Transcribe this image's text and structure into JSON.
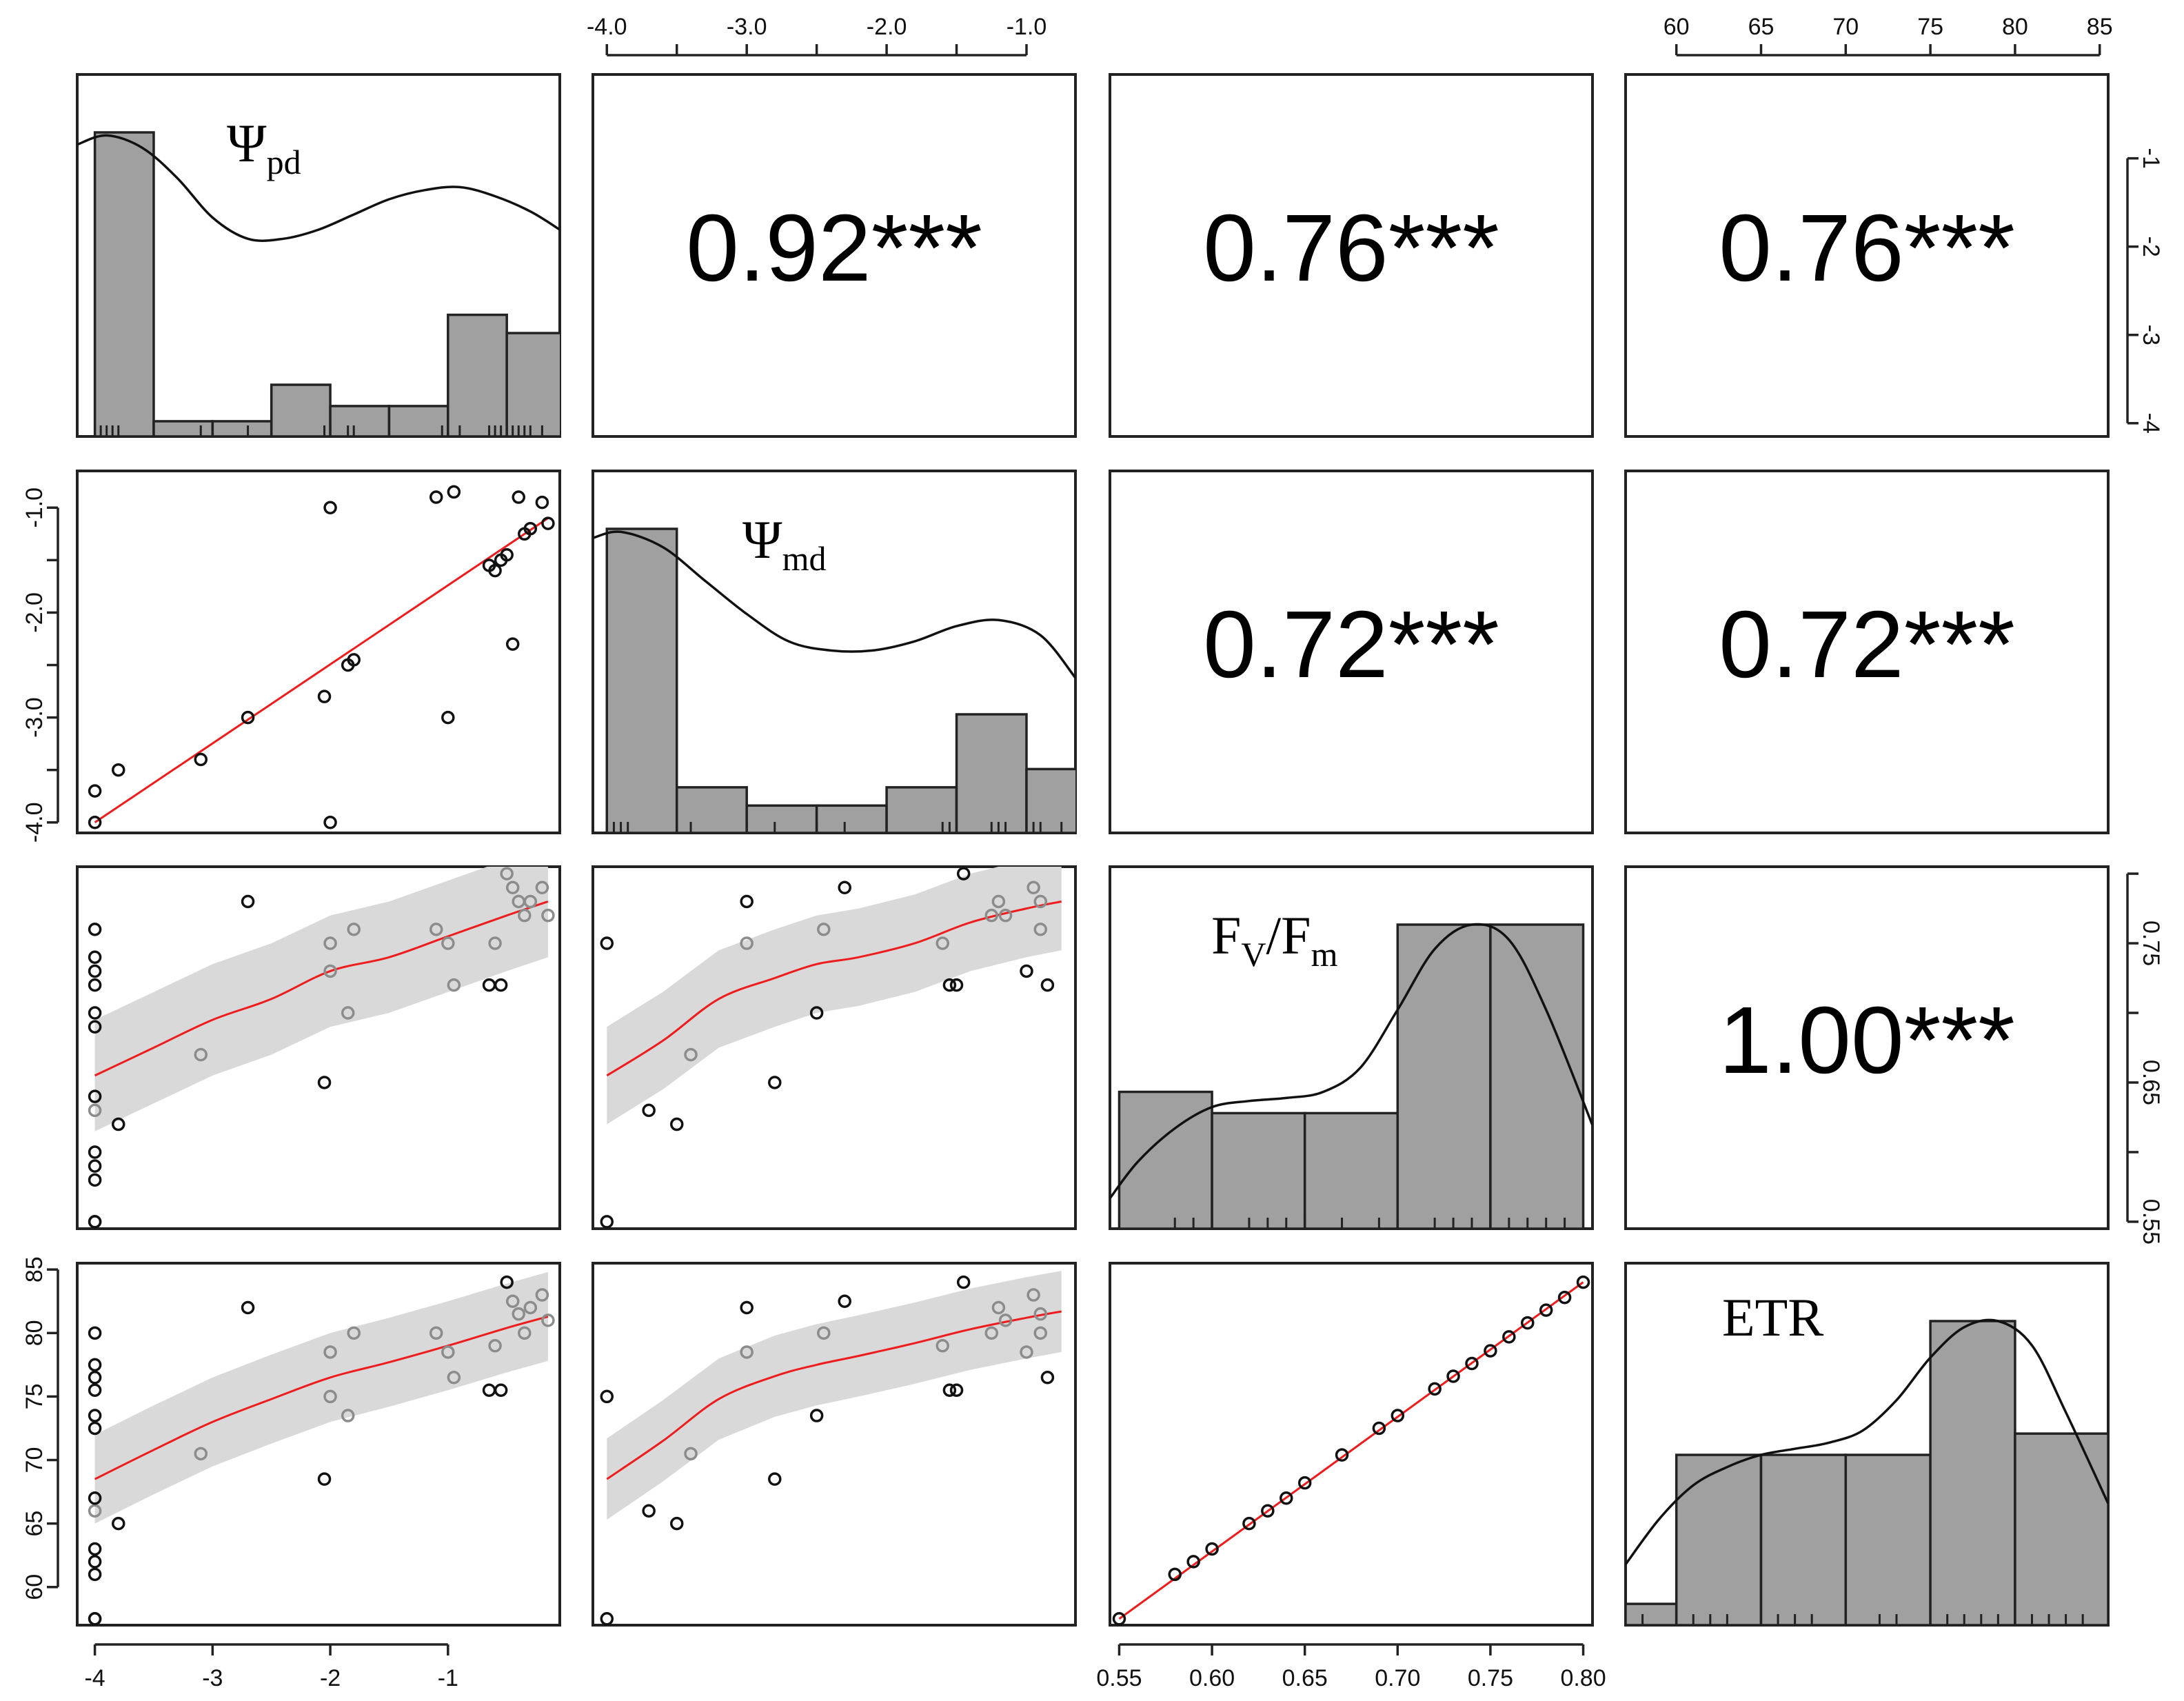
{
  "chart_data": {
    "type": "scatter",
    "title": "",
    "variables": [
      {
        "key": "psi_pd",
        "label_main": "Ψ",
        "label_sub": "pd",
        "range": [
          -4.15,
          -0.05
        ]
      },
      {
        "key": "psi_md",
        "label_main": "Ψ",
        "label_sub": "md",
        "range": [
          -4.1,
          -0.65
        ]
      },
      {
        "key": "fv_fm",
        "label_main": "F",
        "label_sub": "V",
        "label_mid": "/F",
        "label_sub2": "m",
        "range": [
          0.545,
          0.805
        ]
      },
      {
        "key": "etr",
        "label_main": "ETR",
        "label_sub": "",
        "range": [
          57,
          85.5
        ]
      }
    ],
    "correlations": [
      {
        "row": 0,
        "col": 1,
        "value": 0.92,
        "text": "0.92***"
      },
      {
        "row": 0,
        "col": 2,
        "value": 0.76,
        "text": "0.76***"
      },
      {
        "row": 0,
        "col": 3,
        "value": 0.76,
        "text": "0.76***"
      },
      {
        "row": 1,
        "col": 2,
        "value": 0.72,
        "text": "0.72***"
      },
      {
        "row": 1,
        "col": 3,
        "value": 0.72,
        "text": "0.72***"
      },
      {
        "row": 2,
        "col": 3,
        "value": 1.0,
        "text": "1.00***"
      }
    ],
    "axes": {
      "top": [
        {
          "col": 1,
          "ticks": [
            {
              "v": -4.0,
              "label": "-4.0"
            },
            {
              "v": -3.5,
              "label": ""
            },
            {
              "v": -3.0,
              "label": "-3.0"
            },
            {
              "v": -2.5,
              "label": ""
            },
            {
              "v": -2.0,
              "label": "-2.0"
            },
            {
              "v": -1.5,
              "label": ""
            },
            {
              "v": -1.0,
              "label": "-1.0"
            }
          ]
        },
        {
          "col": 3,
          "ticks": [
            {
              "v": 60,
              "label": "60"
            },
            {
              "v": 65,
              "label": "65"
            },
            {
              "v": 70,
              "label": "70"
            },
            {
              "v": 75,
              "label": "75"
            },
            {
              "v": 80,
              "label": "80"
            },
            {
              "v": 85,
              "label": "85"
            }
          ]
        }
      ],
      "bottom": [
        {
          "col": 0,
          "ticks": [
            {
              "v": -4,
              "label": "-4"
            },
            {
              "v": -3,
              "label": "-3"
            },
            {
              "v": -2,
              "label": "-2"
            },
            {
              "v": -1,
              "label": "-1"
            }
          ]
        },
        {
          "col": 2,
          "ticks": [
            {
              "v": 0.55,
              "label": "0.55"
            },
            {
              "v": 0.6,
              "label": "0.60"
            },
            {
              "v": 0.65,
              "label": "0.65"
            },
            {
              "v": 0.7,
              "label": "0.70"
            },
            {
              "v": 0.75,
              "label": "0.75"
            },
            {
              "v": 0.8,
              "label": "0.80"
            }
          ]
        }
      ],
      "left": [
        {
          "row": 1,
          "ticks": [
            {
              "v": -4.0,
              "label": "-4.0"
            },
            {
              "v": -3.5,
              "label": ""
            },
            {
              "v": -3.0,
              "label": "-3.0"
            },
            {
              "v": -2.5,
              "label": ""
            },
            {
              "v": -2.0,
              "label": "-2.0"
            },
            {
              "v": -1.5,
              "label": ""
            },
            {
              "v": -1.0,
              "label": "-1.0"
            }
          ]
        },
        {
          "row": 3,
          "ticks": [
            {
              "v": 60,
              "label": "60"
            },
            {
              "v": 65,
              "label": "65"
            },
            {
              "v": 70,
              "label": "70"
            },
            {
              "v": 75,
              "label": "75"
            },
            {
              "v": 80,
              "label": "80"
            },
            {
              "v": 85,
              "label": "85"
            }
          ]
        }
      ],
      "right": [
        {
          "row": 0,
          "ticks": [
            {
              "v": -4,
              "label": "-4"
            },
            {
              "v": -3,
              "label": "-3"
            },
            {
              "v": -2,
              "label": "-2"
            },
            {
              "v": -1,
              "label": "-1"
            }
          ]
        },
        {
          "row": 2,
          "ticks": [
            {
              "v": 0.55,
              "label": "0.55"
            },
            {
              "v": 0.6,
              "label": ""
            },
            {
              "v": 0.65,
              "label": "0.65"
            },
            {
              "v": 0.7,
              "label": ""
            },
            {
              "v": 0.75,
              "label": "0.75"
            },
            {
              "v": 0.8,
              "label": ""
            }
          ]
        }
      ]
    },
    "histograms": [
      {
        "var": 0,
        "bins": [
          [
            -4.0,
            -3.5,
            1.0
          ],
          [
            -3.5,
            -3.0,
            0.05
          ],
          [
            -3.0,
            -2.5,
            0.05
          ],
          [
            -2.5,
            -2.0,
            0.17
          ],
          [
            -2.0,
            -1.5,
            0.1
          ],
          [
            -1.5,
            -1.0,
            0.1
          ],
          [
            -1.0,
            -0.5,
            0.4
          ],
          [
            -0.5,
            0.0,
            0.34
          ]
        ],
        "density_x": [
          -4.15,
          -3.9,
          -3.6,
          -3.3,
          -3.0,
          -2.7,
          -2.4,
          -2.1,
          -1.8,
          -1.5,
          -1.2,
          -0.9,
          -0.6,
          -0.3,
          -0.05
        ],
        "density_y": [
          0.96,
          0.99,
          0.95,
          0.85,
          0.72,
          0.65,
          0.65,
          0.68,
          0.73,
          0.78,
          0.81,
          0.82,
          0.79,
          0.74,
          0.68
        ],
        "rug": [
          -4.0,
          -3.95,
          -3.9,
          -3.85,
          -3.8,
          -3.1,
          -2.7,
          -2.05,
          -2.0,
          -1.85,
          -1.8,
          -1.05,
          -0.9,
          -0.65,
          -0.6,
          -0.55,
          -0.5,
          -0.45,
          -0.4,
          -0.35,
          -0.3,
          -0.2
        ]
      },
      {
        "var": 1,
        "bins": [
          [
            -4.0,
            -3.5,
            1.0
          ],
          [
            -3.5,
            -3.0,
            0.15
          ],
          [
            -3.0,
            -2.5,
            0.09
          ],
          [
            -2.5,
            -2.0,
            0.09
          ],
          [
            -2.0,
            -1.5,
            0.15
          ],
          [
            -1.5,
            -1.0,
            0.39
          ],
          [
            -1.0,
            -0.5,
            0.21
          ]
        ],
        "density_x": [
          -4.1,
          -3.9,
          -3.6,
          -3.3,
          -3.0,
          -2.7,
          -2.4,
          -2.1,
          -1.8,
          -1.5,
          -1.2,
          -0.9,
          -0.65
        ],
        "density_y": [
          0.97,
          0.99,
          0.94,
          0.83,
          0.72,
          0.63,
          0.6,
          0.6,
          0.63,
          0.68,
          0.7,
          0.65,
          0.51
        ],
        "rug": [
          -4.0,
          -3.95,
          -3.9,
          -3.85,
          -3.5,
          -3.4,
          -3.0,
          -2.8,
          -2.5,
          -2.3,
          -1.6,
          -1.55,
          -1.5,
          -1.25,
          -1.2,
          -1.15,
          -1.0,
          -0.95,
          -0.9,
          -0.75
        ]
      },
      {
        "var": 2,
        "bins": [
          [
            0.55,
            0.6,
            0.45
          ],
          [
            0.6,
            0.65,
            0.38
          ],
          [
            0.65,
            0.7,
            0.38
          ],
          [
            0.7,
            0.75,
            1.0
          ],
          [
            0.75,
            0.8,
            1.0
          ]
        ],
        "density_x": [
          0.545,
          0.56,
          0.58,
          0.6,
          0.62,
          0.64,
          0.66,
          0.68,
          0.7,
          0.72,
          0.74,
          0.76,
          0.78,
          0.805
        ],
        "density_y": [
          0.1,
          0.22,
          0.33,
          0.4,
          0.42,
          0.43,
          0.45,
          0.53,
          0.72,
          0.92,
          1.0,
          0.95,
          0.72,
          0.34
        ],
        "rug": [
          0.55,
          0.58,
          0.59,
          0.6,
          0.62,
          0.63,
          0.64,
          0.65,
          0.67,
          0.69,
          0.7,
          0.72,
          0.73,
          0.74,
          0.75,
          0.76,
          0.77,
          0.78,
          0.79,
          0.8
        ]
      },
      {
        "var": 3,
        "bins": [
          [
            57,
            60,
            0.07
          ],
          [
            60,
            65,
            0.56
          ],
          [
            65,
            70,
            0.56
          ],
          [
            70,
            75,
            0.56
          ],
          [
            75,
            80,
            1.0
          ],
          [
            80,
            85.5,
            0.63
          ]
        ],
        "density_x": [
          57,
          59,
          61,
          63,
          65,
          67,
          69,
          71,
          73,
          75,
          77,
          79,
          81,
          83,
          85.5
        ],
        "density_y": [
          0.2,
          0.35,
          0.46,
          0.52,
          0.56,
          0.58,
          0.6,
          0.64,
          0.74,
          0.88,
          0.98,
          1.0,
          0.92,
          0.7,
          0.4
        ],
        "rug": [
          58,
          61,
          62,
          63,
          65,
          66,
          67,
          68,
          70,
          72,
          73,
          76,
          77,
          78,
          79,
          80,
          81,
          82,
          83,
          84
        ]
      }
    ],
    "observations": {
      "psi_pd": [
        -4.0,
        -4.0,
        -3.8,
        -3.1,
        -2.7,
        -2.05,
        -2.0,
        -1.85,
        -1.8,
        -1.1,
        -1.0,
        -0.65,
        -0.6,
        -0.55,
        -0.5,
        -0.45,
        -0.4,
        -0.35,
        -0.3,
        -0.2,
        -0.15,
        -0.95,
        -2.0
      ],
      "psi_md": [
        -3.7,
        -4.0,
        -3.5,
        -3.4,
        -3.0,
        -2.8,
        -1.0,
        -2.5,
        -2.45,
        -0.9,
        -3.0,
        -1.55,
        -1.6,
        -1.5,
        -1.45,
        -2.3,
        -0.9,
        -1.25,
        -1.2,
        -0.95,
        -1.15,
        -0.85,
        -4.0
      ],
      "fv_fm": [
        0.63,
        0.55,
        0.62,
        0.67,
        0.78,
        0.65,
        0.73,
        0.7,
        0.76,
        0.76,
        0.75,
        0.72,
        0.75,
        0.72,
        0.8,
        0.79,
        0.78,
        0.77,
        0.78,
        0.79,
        0.77,
        0.72,
        0.75
      ],
      "etr": [
        66.0,
        57.5,
        65.0,
        70.5,
        82.0,
        68.5,
        78.5,
        73.5,
        80.0,
        80.0,
        78.5,
        75.5,
        79.0,
        75.5,
        84.0,
        82.5,
        81.5,
        80.0,
        82.0,
        83.0,
        81.0,
        76.5,
        75.0
      ]
    },
    "extra_points": [
      {
        "panel": "2-0",
        "x": [
          -4.0,
          -4.0,
          -4.0,
          -4.0,
          -4.0,
          -4.0,
          -4.0,
          -4.0,
          -4.0,
          -4.0,
          -4.0
        ],
        "y": [
          0.76,
          0.74,
          0.73,
          0.72,
          0.7,
          0.69,
          0.64,
          0.6,
          0.59,
          0.58,
          0.55
        ]
      },
      {
        "panel": "3-0",
        "x": [
          -4.0,
          -4.0,
          -4.0,
          -4.0,
          -4.0,
          -4.0,
          -4.0,
          -4.0,
          -4.0,
          -4.0,
          -4.0
        ],
        "y": [
          80,
          77.5,
          76.5,
          75.5,
          73.5,
          72.5,
          67,
          63,
          62,
          61,
          57.5
        ]
      }
    ],
    "loess": {
      "fv_vs_pd": {
        "x": [
          -4.0,
          -3.5,
          -3.0,
          -2.5,
          -2.0,
          -1.5,
          -1.0,
          -0.5,
          -0.15
        ],
        "y": [
          0.655,
          0.675,
          0.695,
          0.71,
          0.73,
          0.74,
          0.755,
          0.77,
          0.78
        ],
        "band": 0.04
      },
      "fv_vs_md": {
        "x": [
          -4.0,
          -3.6,
          -3.2,
          -2.8,
          -2.5,
          -2.2,
          -1.8,
          -1.4,
          -1.0,
          -0.75
        ],
        "y": [
          0.655,
          0.68,
          0.71,
          0.725,
          0.735,
          0.74,
          0.75,
          0.765,
          0.775,
          0.78
        ],
        "band": 0.035
      },
      "etr_vs_pd": {
        "x": [
          -4.0,
          -3.5,
          -3.0,
          -2.5,
          -2.0,
          -1.5,
          -1.0,
          -0.5,
          -0.15
        ],
        "y": [
          68.5,
          70.8,
          73.0,
          74.8,
          76.5,
          77.7,
          79.0,
          80.4,
          81.3
        ],
        "band": 3.5
      },
      "etr_vs_md": {
        "x": [
          -4.0,
          -3.6,
          -3.2,
          -2.8,
          -2.5,
          -2.2,
          -1.8,
          -1.4,
          -1.0,
          -0.75
        ],
        "y": [
          68.5,
          71.5,
          74.8,
          76.6,
          77.5,
          78.2,
          79.2,
          80.3,
          81.2,
          81.7
        ],
        "band": 3.2
      },
      "etr_vs_fv": {
        "x": [
          0.55,
          0.8
        ],
        "y": [
          57.5,
          84.0
        ],
        "band": 0
      }
    },
    "fv_etr_points": {
      "x": [
        0.55,
        0.58,
        0.59,
        0.6,
        0.62,
        0.63,
        0.64,
        0.65,
        0.67,
        0.69,
        0.7,
        0.72,
        0.73,
        0.74,
        0.75,
        0.76,
        0.77,
        0.78,
        0.79,
        0.8
      ],
      "y": [
        57.5,
        61.0,
        62.0,
        63.0,
        65.0,
        66.0,
        67.0,
        68.2,
        70.4,
        72.5,
        73.5,
        75.6,
        76.6,
        77.6,
        78.6,
        79.7,
        80.8,
        81.8,
        82.8,
        84.0
      ]
    }
  }
}
